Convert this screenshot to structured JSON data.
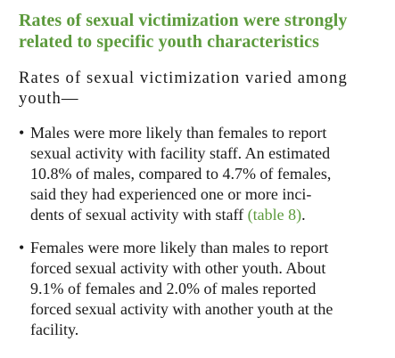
{
  "heading": {
    "line1": "Rates of sexual victimization were strongly",
    "line2": "related to specific youth characteristics"
  },
  "intro": {
    "line1": "Rates of sexual victimization varied among",
    "line2": "youth—"
  },
  "bullets": [
    {
      "marker": "•",
      "lines": [
        "Males were more likely than females to report",
        "sexual activity with facility staff. An estimated",
        "10.8% of males, compared to 4.7% of females,",
        "said they had experienced one or more inci-"
      ],
      "last_line_text": "dents of sexual activity with staff ",
      "link_text": "(table 8)",
      "trailing": "."
    },
    {
      "marker": "•",
      "lines": [
        "Females were more likely than males to report",
        "forced sexual activity with other youth. About",
        "9.1% of females and 2.0% of males reported",
        "forced sexual activity with another youth at the",
        "facility."
      ]
    }
  ]
}
